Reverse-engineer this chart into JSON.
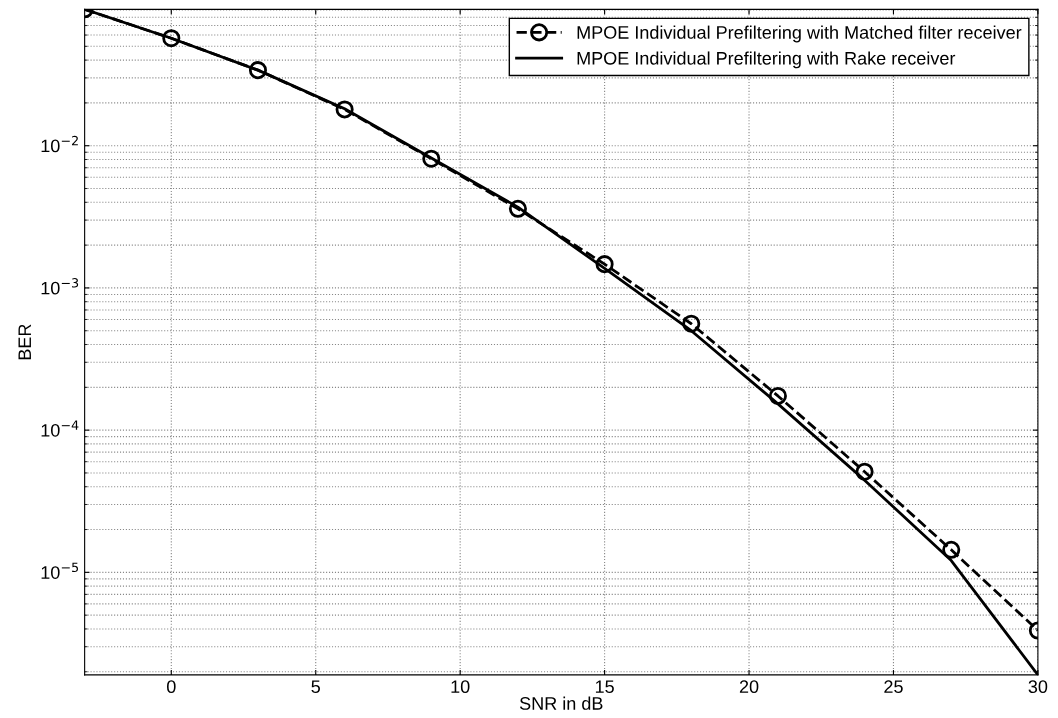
{
  "chart_data": {
    "type": "line",
    "xlabel": "SNR in dB",
    "ylabel": "BER",
    "log": "y",
    "grid": true,
    "legend": "top right",
    "x": [
      -3,
      0,
      3,
      6,
      9,
      12,
      15,
      18,
      21,
      24,
      27,
      30
    ],
    "xlim": [
      -3,
      30
    ],
    "xticks": [
      0,
      5,
      10,
      15,
      20,
      25,
      30
    ],
    "ylim": [
      1.9e-06,
      0.091
    ],
    "yticks": [
      {
        "value": 0.01,
        "label": "10$^{−2}$"
      },
      {
        "value": 0.001,
        "label": "10$^{−3}$"
      },
      {
        "value": 0.0001,
        "label": "10$^{−4}$"
      },
      {
        "value": 1e-05,
        "label": "10$^{−5}$"
      }
    ],
    "series": [
      {
        "name": "MPOE Individual Prefiltering with Matched filter receiver",
        "color": "#000000",
        "line_style": "dashed",
        "marker": "circle",
        "values": [
          0.091,
          0.057,
          0.034,
          0.018,
          0.0081,
          0.0036,
          0.00147,
          0.00056,
          0.000174,
          5.1e-05,
          1.44e-05,
          3.9e-06
        ]
      },
      {
        "name": "MPOE Individual Prefiltering with Rake receiver",
        "color": "#000000",
        "line_style": "solid",
        "marker": "none",
        "values": [
          0.091,
          0.057,
          0.034,
          0.0182,
          0.0082,
          0.0037,
          0.00137,
          0.0005,
          0.000153,
          4.45e-05,
          1.21e-05,
          1.9e-06
        ]
      }
    ]
  }
}
